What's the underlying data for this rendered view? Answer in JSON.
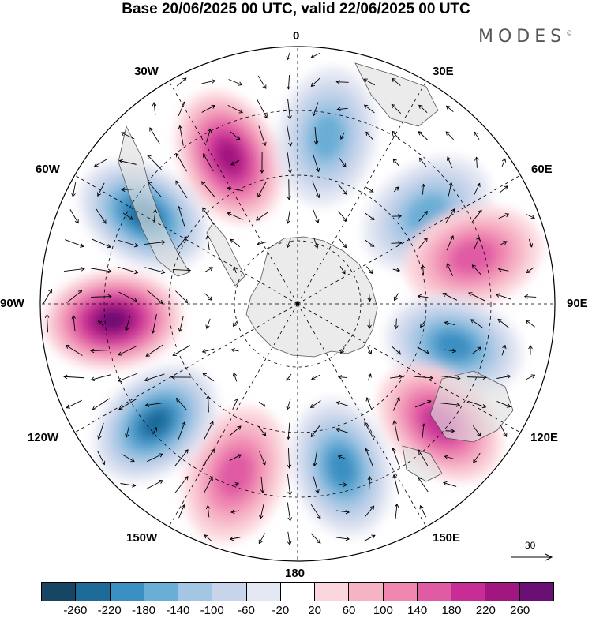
{
  "title": "Base 20/06/2025 00 UTC, valid 22/06/2025 00 UTC",
  "brand": "MODES",
  "brand_mark": "©",
  "longitude_labels": {
    "top": "0",
    "bottom": "180",
    "left": "90W",
    "right": "90E",
    "upper_left_1": "30W",
    "upper_left_2": "60W",
    "upper_right_1": "30E",
    "upper_right_2": "60E",
    "lower_left_1": "120W",
    "lower_left_2": "150W",
    "lower_right_1": "120E",
    "lower_right_2": "150E"
  },
  "reference_vector": {
    "value": "30"
  },
  "colorbar": {
    "colors": [
      "#174664",
      "#1e6b9a",
      "#3b8fc2",
      "#6aaed6",
      "#a4c6e4",
      "#c7d4ea",
      "#e3e6f3",
      "#ffffff",
      "#fbd6dc",
      "#f6b3c6",
      "#ef88b1",
      "#e05aa4",
      "#c72d94",
      "#a1167f",
      "#6a0f73"
    ],
    "ticks": [
      "-260",
      "-220",
      "-180",
      "-140",
      "-100",
      "-60",
      "-20",
      "20",
      "60",
      "100",
      "140",
      "180",
      "220",
      "260"
    ]
  },
  "chart_data": {
    "type": "heatmap",
    "projection": "south polar stereographic",
    "title": "Base 20/06/2025 00 UTC, valid 22/06/2025 00 UTC",
    "levels": [
      -260,
      -220,
      -180,
      -140,
      -100,
      -60,
      -20,
      20,
      60,
      100,
      140,
      180,
      220,
      260
    ],
    "anomaly_centers": [
      {
        "lon": "~25W",
        "sign": "positive",
        "peak": 220
      },
      {
        "lon": "~10E",
        "sign": "negative",
        "peak": -140
      },
      {
        "lon": "~55E",
        "sign": "negative",
        "peak": -140
      },
      {
        "lon": "~75E",
        "sign": "positive",
        "peak": 140
      },
      {
        "lon": "~105E",
        "sign": "negative",
        "peak": -180
      },
      {
        "lon": "~130E",
        "sign": "positive",
        "peak": 180
      },
      {
        "lon": "~165E",
        "sign": "negative",
        "peak": -180
      },
      {
        "lon": "~160W",
        "sign": "positive",
        "peak": 140
      },
      {
        "lon": "~130W",
        "sign": "negative",
        "peak": -220
      },
      {
        "lon": "~95W",
        "sign": "positive",
        "peak": 260
      },
      {
        "lon": "~60W",
        "sign": "negative",
        "peak": -220
      }
    ],
    "reference_vector": 30
  }
}
